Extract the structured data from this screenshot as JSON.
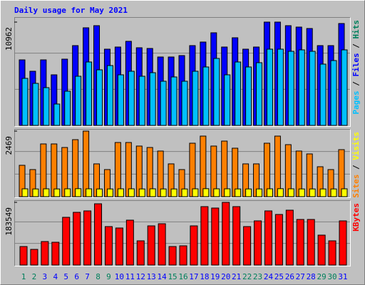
{
  "title": "Daily usage for May 2021",
  "weekend_days": [
    1,
    2,
    8,
    9,
    15,
    16,
    22,
    23,
    29,
    30
  ],
  "chart_data": [
    {
      "type": "bar",
      "series": [
        {
          "name": "Files",
          "color": "#0000ff",
          "values": [
            6955,
            5746,
            6955,
            5368,
            7031,
            8467,
            10357,
            10584,
            8089,
            8316,
            8921,
            8240,
            8165,
            7258,
            7258,
            7409,
            8467,
            8845,
            9828,
            8316,
            9299,
            8089,
            8316,
            10962,
            10962,
            10584,
            10433,
            10282,
            8467,
            8467,
            10811
          ]
        },
        {
          "name": "Pages",
          "color": "#00c0ff",
          "values": [
            4990,
            4460,
            4007,
            2268,
            3629,
            5216,
            6728,
            5897,
            6350,
            5368,
            5746,
            5216,
            5594,
            4687,
            5141,
            4687,
            5746,
            6199,
            7106,
            5368,
            6728,
            6199,
            6653,
            8089,
            8089,
            7862,
            8014,
            7862,
            6502,
            6880,
            8014
          ]
        }
      ],
      "legend": [
        {
          "name": "Pages",
          "color": "#00c0ff"
        },
        {
          "name": "Files",
          "color": "#0000ff"
        },
        {
          "name": "Hits",
          "color": "#00805c"
        }
      ],
      "separator": " / ",
      "ylim": [
        0,
        10962
      ],
      "yticks": [
        10962
      ]
    },
    {
      "type": "bar",
      "series": [
        {
          "name": "Sites",
          "color": "#ff8000",
          "values": [
            1181,
            1020,
            1986,
            1986,
            1852,
            2147,
            2469,
            1235,
            1020,
            2040,
            2040,
            1906,
            1852,
            1718,
            1235,
            1020,
            2013,
            2281,
            1906,
            2093,
            1825,
            1235,
            1235,
            2013,
            2281,
            1959,
            1718,
            1610,
            1127,
            1020,
            1771
          ]
        },
        {
          "name": "Visits",
          "color": "#ffff00",
          "values": [
            295,
            290,
            295,
            290,
            295,
            300,
            295,
            290,
            290,
            295,
            295,
            290,
            295,
            290,
            290,
            290,
            295,
            300,
            295,
            295,
            290,
            290,
            290,
            295,
            300,
            295,
            290,
            290,
            290,
            290,
            295
          ]
        }
      ],
      "legend": [
        {
          "name": "Sites",
          "color": "#ff8000"
        },
        {
          "name": "Visits",
          "color": "#ffff00"
        }
      ],
      "separator": " / ",
      "ylim": [
        0,
        2469
      ],
      "yticks": [
        2469
      ]
    },
    {
      "type": "bar",
      "categories": [
        "1",
        "2",
        "3",
        "4",
        "5",
        "6",
        "7",
        "8",
        "9",
        "10",
        "11",
        "12",
        "13",
        "14",
        "15",
        "16",
        "17",
        "18",
        "19",
        "20",
        "21",
        "22",
        "23",
        "24",
        "25",
        "26",
        "27",
        "28",
        "29",
        "30",
        "31"
      ],
      "weekday_color": "#0000ff",
      "weekend_color": "#00805c",
      "series": [
        {
          "name": "KBytes",
          "color": "#ff0000",
          "values": [
            54236,
            45892,
            68838,
            66752,
            139762,
            154364,
            158536,
            179396,
            112644,
            108472,
            131418,
            70924,
            114730,
            120988,
            54236,
            56322,
            114730,
            171052,
            166880,
            183549,
            171052,
            112644,
            129332,
            158536,
            148106,
            160622,
            133504,
            133504,
            87612,
            70924,
            129332
          ]
        }
      ],
      "legend": [
        {
          "name": "KBytes",
          "color": "#ff0000"
        }
      ],
      "separator": " / ",
      "ylim": [
        0,
        183549
      ],
      "yticks": [
        183549
      ]
    }
  ]
}
